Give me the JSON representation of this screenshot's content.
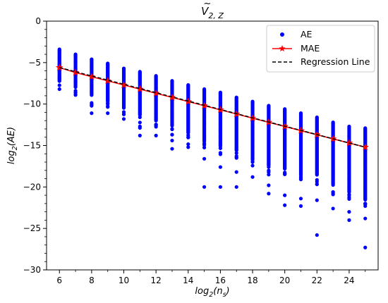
{
  "chart_data": {
    "type": "scatter",
    "title": "Ṽ₂,ℤ",
    "title_parts": {
      "main": "V",
      "accent": "~",
      "sub": "2, Z"
    },
    "xlabel_parts": {
      "base": "log",
      "base_sub": "2",
      "arg": "(n",
      "arg_sub": "s",
      "close": ")"
    },
    "ylabel_parts": {
      "base": "log",
      "base_sub": "2",
      "arg": "(AE)"
    },
    "xlim": [
      5.2,
      25.8
    ],
    "ylim": [
      -30,
      0
    ],
    "x_ticks": [
      6,
      8,
      10,
      12,
      14,
      16,
      18,
      20,
      22,
      24
    ],
    "x_tick_labels": [
      "6",
      "8",
      "10",
      "12",
      "14",
      "16",
      "18",
      "20",
      "22",
      "24"
    ],
    "y_ticks": [
      0,
      -5,
      -10,
      -15,
      -20,
      -25,
      -30
    ],
    "y_tick_labels": [
      "0",
      "−5",
      "−10",
      "−15",
      "−20",
      "−25",
      "−30"
    ],
    "grid": false,
    "legend_position": "top-right",
    "colors": {
      "ae": "#0000ff",
      "mae": "#ff0000",
      "regression": "#000000"
    },
    "series": [
      {
        "name": "AE",
        "kind": "scatter",
        "x": [
          6,
          7,
          8,
          9,
          10,
          11,
          12,
          13,
          14,
          15,
          16,
          17,
          18,
          19,
          20,
          21,
          22,
          23,
          24,
          25
        ],
        "y_top": [
          -3.4,
          -4.0,
          -4.6,
          -5.1,
          -5.7,
          -6.1,
          -6.6,
          -7.2,
          -7.7,
          -8.2,
          -8.6,
          -9.2,
          -9.7,
          -10.2,
          -10.6,
          -11.1,
          -11.6,
          -12.2,
          -12.7,
          -12.9
        ],
        "y_dense_bottom": [
          -7.0,
          -8.0,
          -9.0,
          -9.7,
          -10.4,
          -11.4,
          -12.0,
          -12.6,
          -13.5,
          -14.5,
          -15.0,
          -15.6,
          -16.7,
          -17.4,
          -17.8,
          -18.6,
          -18.6,
          -19.8,
          -20.7,
          -21.6
        ],
        "outliers": [
          [
            6,
            -8.2
          ],
          [
            7,
            -8.6
          ],
          [
            8,
            -11.1
          ],
          [
            9,
            -11.1
          ],
          [
            10,
            -11.8
          ],
          [
            11,
            -13.8
          ],
          [
            12,
            -13.8
          ],
          [
            13,
            -15.4
          ],
          [
            13,
            -14.4
          ],
          [
            14,
            -15.2
          ],
          [
            15,
            -20.0
          ],
          [
            15,
            -16.6
          ],
          [
            16,
            -20.0
          ],
          [
            16,
            -17.6
          ],
          [
            17,
            -20.0
          ],
          [
            17,
            -18.2
          ],
          [
            18,
            -18.8
          ],
          [
            19,
            -20.8
          ],
          [
            19,
            -19.8
          ],
          [
            20,
            -22.2
          ],
          [
            20,
            -21.0
          ],
          [
            21,
            -22.3
          ],
          [
            21,
            -21.4
          ],
          [
            22,
            -25.8
          ],
          [
            22,
            -21.6
          ],
          [
            23,
            -22.6
          ],
          [
            24,
            -24.0
          ],
          [
            24,
            -23.0
          ],
          [
            25,
            -27.3
          ],
          [
            25,
            -23.8
          ]
        ]
      },
      {
        "name": "MAE",
        "kind": "line-marker",
        "x": [
          6,
          7,
          8,
          9,
          10,
          11,
          12,
          13,
          14,
          15,
          16,
          17,
          18,
          19,
          20,
          21,
          22,
          23,
          24,
          25
        ],
        "y": [
          -5.6,
          -6.2,
          -6.7,
          -7.2,
          -7.7,
          -8.2,
          -8.7,
          -9.2,
          -9.7,
          -10.2,
          -10.7,
          -11.2,
          -11.7,
          -12.2,
          -12.7,
          -13.2,
          -13.7,
          -14.2,
          -14.7,
          -15.2
        ]
      },
      {
        "name": "Regression Line",
        "kind": "dashed-line",
        "x": [
          6,
          25
        ],
        "y": [
          -5.6,
          -15.2
        ]
      }
    ]
  }
}
